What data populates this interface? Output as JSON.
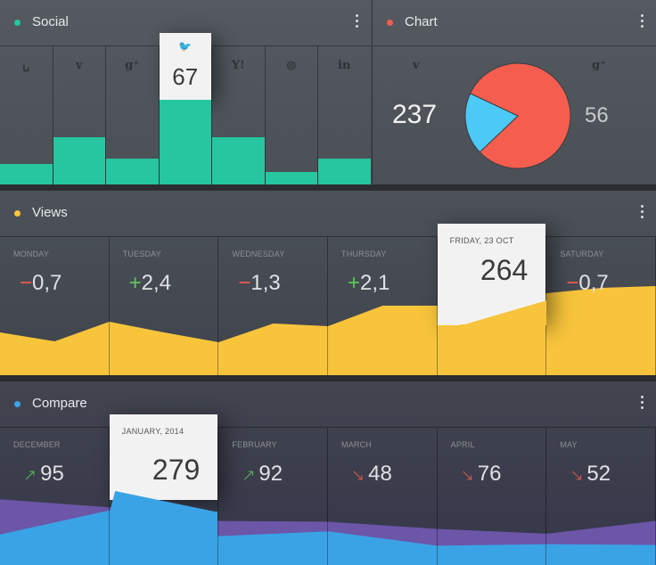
{
  "social": {
    "title": "Social",
    "accent": "#26c6a0",
    "networks": [
      {
        "icon": "stumbleupon-icon",
        "glyph": "ꭎ",
        "value": 0.15
      },
      {
        "icon": "vimeo-icon",
        "glyph": "v",
        "value": 0.34
      },
      {
        "icon": "googleplus-icon",
        "glyph": "g⁺",
        "value": 0.19
      },
      {
        "icon": "twitter-icon",
        "glyph": "🐦",
        "value": 0.61,
        "label": "67",
        "highlight": true
      },
      {
        "icon": "yahoo-icon",
        "glyph": "Y!",
        "value": 0.34
      },
      {
        "icon": "dribbble-icon",
        "glyph": "◍",
        "value": 0.09
      },
      {
        "icon": "linkedin-icon",
        "glyph": "in",
        "value": 0.19
      }
    ]
  },
  "chart": {
    "title": "Chart",
    "accent": "#f15d4e",
    "left": {
      "icon": "vimeo-icon",
      "glyph": "v",
      "value": "237",
      "color": "#f55d4f"
    },
    "right": {
      "icon": "googleplus-icon",
      "glyph": "g⁺",
      "value": "56",
      "color": "#4dc9f6"
    }
  },
  "views": {
    "title": "Views",
    "accent": "#f7c43b",
    "days": [
      {
        "label": "MONDAY",
        "sign": "−",
        "num": "0,7",
        "trend": "minus"
      },
      {
        "label": "TUESDAY",
        "sign": "+",
        "num": "2,4",
        "trend": "plus"
      },
      {
        "label": "WEDNESDAY",
        "sign": "−",
        "num": "1,3",
        "trend": "minus"
      },
      {
        "label": "THURSDAY",
        "sign": "+",
        "num": "2,1",
        "trend": "plus"
      },
      {
        "label": "FRIDAY, 23 OCT",
        "sign": "",
        "num": "264",
        "trend": "none",
        "highlight": true
      },
      {
        "label": "SATURDAY",
        "sign": "−",
        "num": "0,7",
        "trend": "minus"
      }
    ]
  },
  "compare": {
    "title": "Compare",
    "accent": "#3aa3e6",
    "months": [
      {
        "label": "DECEMBER",
        "arrow": "↗",
        "num": "95",
        "trend": "up"
      },
      {
        "label": "JANUARY, 2014",
        "arrow": "",
        "num": "279",
        "trend": "none",
        "highlight": true
      },
      {
        "label": "FEBRUARY",
        "arrow": "↗",
        "num": "92",
        "trend": "up"
      },
      {
        "label": "MARCH",
        "arrow": "↘",
        "num": "48",
        "trend": "down"
      },
      {
        "label": "APRIL",
        "arrow": "↘",
        "num": "76",
        "trend": "down"
      },
      {
        "label": "MAY",
        "arrow": "↘",
        "num": "52",
        "trend": "down"
      }
    ]
  },
  "chart_data": [
    {
      "type": "bar",
      "title": "Social",
      "categories": [
        "stumbleupon",
        "vimeo",
        "googleplus",
        "twitter",
        "yahoo",
        "dribbble",
        "linkedin"
      ],
      "values": [
        0.15,
        0.34,
        0.19,
        0.61,
        0.34,
        0.09,
        0.19
      ],
      "data_labels": {
        "twitter": 67
      }
    },
    {
      "type": "pie",
      "title": "Chart",
      "slices": [
        {
          "name": "vimeo",
          "value": 237,
          "color": "#f55d4f"
        },
        {
          "name": "googleplus",
          "value": 56,
          "color": "#4dc9f6"
        }
      ]
    },
    {
      "type": "area",
      "title": "Views",
      "categories": [
        "MONDAY",
        "TUESDAY",
        "WEDNESDAY",
        "THURSDAY",
        "FRIDAY, 23 OCT",
        "SATURDAY"
      ],
      "x": [
        0,
        0.5,
        1,
        1.5,
        2,
        2.5,
        3,
        3.5,
        4,
        4.5,
        5,
        5.5,
        6
      ],
      "values": [
        0.48,
        0.38,
        0.6,
        0.48,
        0.37,
        0.58,
        0.55,
        0.78,
        0.78,
        0.95,
        0.92,
        0.98,
        1.0
      ],
      "ylim": [
        0,
        1.2
      ]
    },
    {
      "type": "area",
      "title": "Compare",
      "categories": [
        "DECEMBER",
        "JANUARY, 2014",
        "FEBRUARY",
        "MARCH",
        "APRIL",
        "MAY"
      ],
      "x": [
        0,
        1,
        2,
        3,
        4,
        5,
        6
      ],
      "series": [
        {
          "color": "#6b56a8",
          "values": [
            0.82,
            0.72,
            0.55,
            0.54,
            0.45,
            0.39,
            0.55
          ]
        },
        {
          "color": "#3aa3e6",
          "values": [
            0.38,
            0.68,
            0.36,
            0.42,
            0.24,
            0.26,
            0.25
          ]
        }
      ],
      "ylim": [
        0,
        1
      ]
    }
  ]
}
